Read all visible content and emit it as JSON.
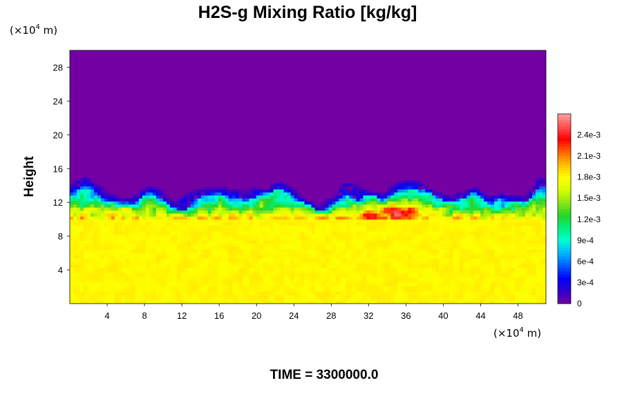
{
  "chart_data": {
    "type": "heatmap",
    "title": "H2S-g Mixing Ratio [kg/kg]",
    "ylabel": "Height",
    "x_units": {
      "prefix": "(×10",
      "exp": "4",
      "suffix": " m)"
    },
    "y_units": {
      "prefix": "(×10",
      "exp": "4",
      "suffix": " m)"
    },
    "xlim": [
      0,
      51
    ],
    "ylim": [
      0,
      30
    ],
    "x_ticks": [
      4,
      8,
      12,
      16,
      20,
      24,
      28,
      32,
      36,
      40,
      44,
      48
    ],
    "y_ticks": [
      4,
      8,
      12,
      16,
      20,
      24,
      28
    ],
    "colorbar": {
      "range": [
        0,
        0.0027
      ],
      "ticks": [
        {
          "value": 0,
          "label": "0"
        },
        {
          "value": 0.0003,
          "label": "3e-4"
        },
        {
          "value": 0.0006,
          "label": "6e-4"
        },
        {
          "value": 0.0009,
          "label": "9e-4"
        },
        {
          "value": 0.0012,
          "label": "1.2e-3"
        },
        {
          "value": 0.0015,
          "label": "1.5e-3"
        },
        {
          "value": 0.0018,
          "label": "1.8e-3"
        },
        {
          "value": 0.0021,
          "label": "2.1e-3"
        },
        {
          "value": 0.0024,
          "label": "2.4e-3"
        }
      ],
      "colormap": [
        "#7400a4",
        "#3200c8",
        "#0000ff",
        "#005aff",
        "#00b4ff",
        "#00ffd2",
        "#00f080",
        "#28d428",
        "#8ce614",
        "#d6ff00",
        "#ffff00",
        "#ffbe00",
        "#ff6400",
        "#ff0000",
        "#ff5050",
        "#ffa0a0"
      ]
    },
    "field_description": "H2S-g mixing ratio: near-uniform ~1.8e-3 below ~10 (×10^4 m), turbulent mixing layer between ~10 and ~13.5 with concentrated high values (up to ~2.4e-3) near x≈30–38, near zero above ~14",
    "base_value": 0.00182,
    "inversion_height": 10.2,
    "top_height": 12.9
  },
  "footer": {
    "time_label": "TIME = 3300000.0"
  }
}
